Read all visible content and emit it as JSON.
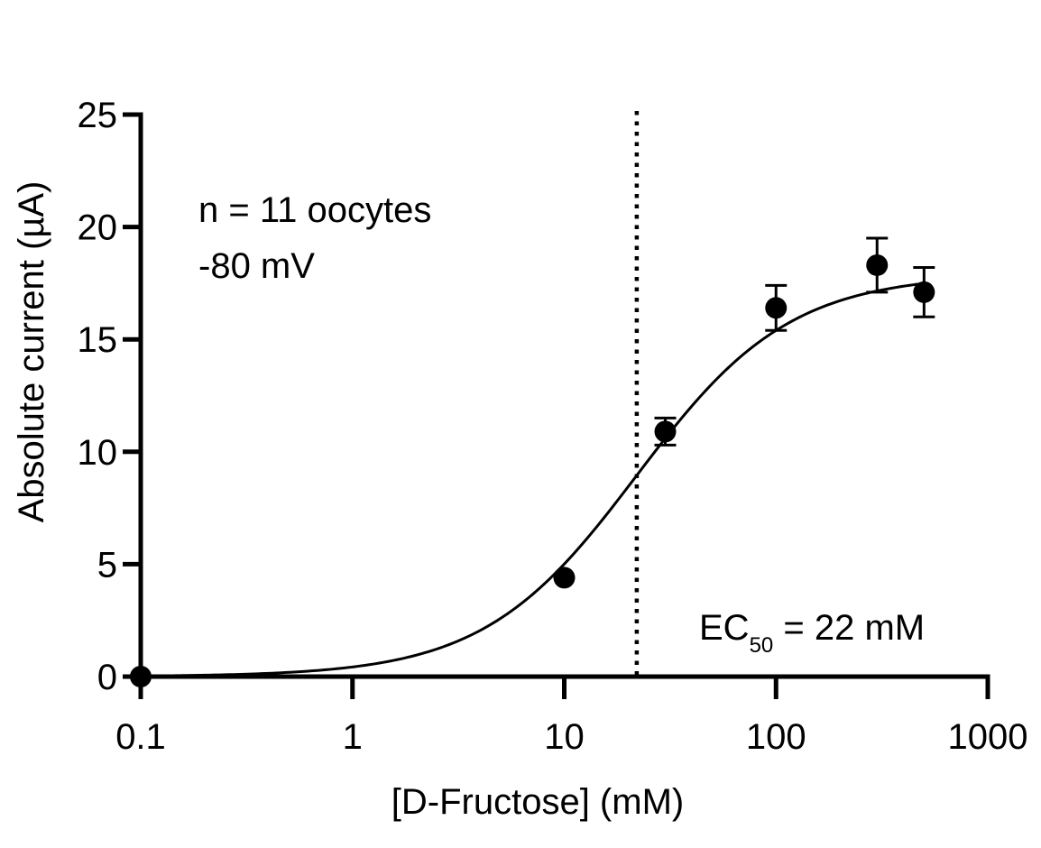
{
  "chart_data": {
    "type": "scatter",
    "x_scale": "log",
    "xlabel": "[D-Fructose] (mM)",
    "ylabel": "Absolute current (µA)",
    "xlim": [
      0.1,
      1000
    ],
    "ylim": [
      0,
      25
    ],
    "x_ticks": [
      0.1,
      1,
      10,
      100,
      1000
    ],
    "x_tick_labels": [
      "0.1",
      "1",
      "10",
      "100",
      "1000"
    ],
    "y_ticks": [
      0,
      5,
      10,
      15,
      20,
      25
    ],
    "y_tick_labels": [
      "0",
      "5",
      "10",
      "15",
      "20",
      "25"
    ],
    "grid": false,
    "series": [
      {
        "x": [
          0.1,
          10,
          30,
          100,
          300,
          500
        ],
        "y": [
          0,
          4.4,
          10.9,
          16.4,
          18.3,
          17.1
        ],
        "error": [
          0,
          0,
          0.6,
          1.0,
          1.2,
          1.1
        ]
      }
    ],
    "fit": {
      "model": "sigmoidal dose-response",
      "bottom": 0,
      "top": 17.9,
      "ec50": 22,
      "hill": 1.2
    },
    "ec50_line_x": 22,
    "annotations": {
      "n_text": "n = 11 oocytes",
      "voltage_text": "-80 mV",
      "ec50_prefix": "EC",
      "ec50_subscript": "50",
      "ec50_suffix": " = 22 mM"
    }
  }
}
